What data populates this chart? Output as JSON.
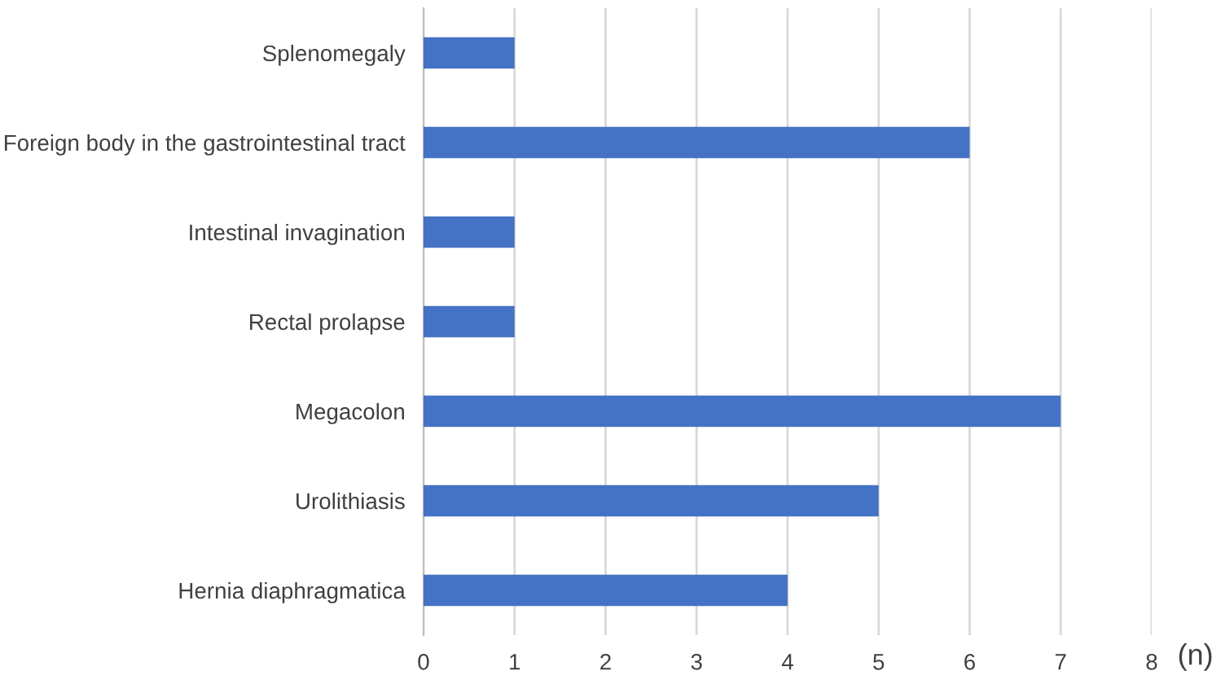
{
  "chart_data": {
    "type": "bar",
    "orientation": "horizontal",
    "xlabel": "(n)",
    "categories": [
      "Splenomegaly",
      "Foreign body in the gastrointestinal tract",
      "Intestinal invagination",
      "Rectal prolapse",
      "Megacolon",
      "Urolithiasis",
      "Hernia diaphragmatica"
    ],
    "values": [
      1,
      6,
      1,
      1,
      7,
      5,
      4
    ],
    "color": "#4472c4",
    "xlim": [
      0,
      8
    ],
    "xticks": [
      0,
      1,
      2,
      3,
      4,
      5,
      6,
      7,
      8
    ],
    "grid": "x",
    "legend": false
  }
}
